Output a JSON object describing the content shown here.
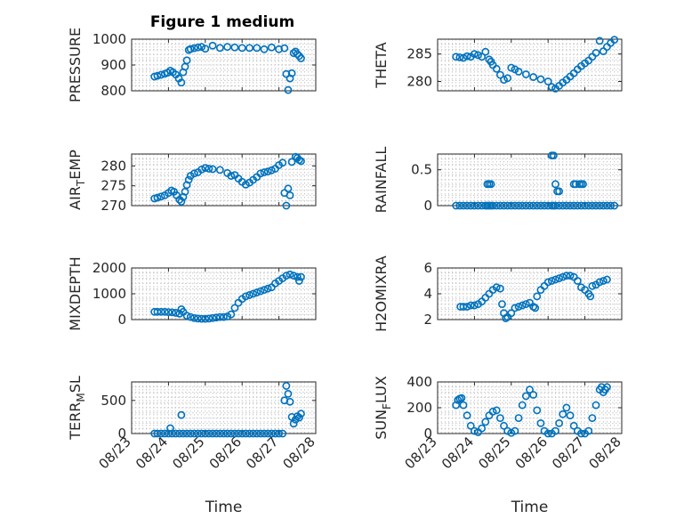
{
  "figure": {
    "title": "Figure 1 medium",
    "marker_color": "#0072BD"
  },
  "chart_data": [
    {
      "type": "scatter",
      "ylabel": "PRESSURE",
      "ylim": [
        800,
        1000
      ],
      "yticks": [
        800,
        900,
        1000
      ],
      "xlim": [
        0,
        5
      ],
      "xtick_labels": [
        "08/23",
        "08/24",
        "08/25",
        "08/26",
        "08/27",
        "08/28"
      ],
      "xlabel": "",
      "grid": true,
      "x": [
        0.62,
        0.7,
        0.8,
        0.9,
        0.98,
        1.05,
        1.12,
        1.2,
        1.28,
        1.35,
        1.4,
        1.45,
        1.5,
        1.55,
        1.6,
        1.7,
        1.8,
        1.9,
        2.0,
        2.2,
        2.4,
        2.6,
        2.8,
        3.0,
        3.2,
        3.4,
        3.6,
        3.8,
        4.0,
        4.15,
        4.2,
        4.25,
        4.3,
        4.35,
        4.4,
        4.45,
        4.5,
        4.55,
        4.6
      ],
      "y": [
        855,
        858,
        862,
        866,
        870,
        878,
        872,
        863,
        848,
        832,
        872,
        893,
        918,
        958,
        962,
        965,
        968,
        970,
        963,
        975,
        966,
        970,
        968,
        966,
        966,
        966,
        961,
        968,
        961,
        965,
        865,
        803,
        848,
        868,
        946,
        952,
        942,
        935,
        926
      ]
    },
    {
      "type": "scatter",
      "ylabel": "THETA",
      "ylim": [
        278.3,
        287.7
      ],
      "yticks": [
        280,
        285
      ],
      "xlim": [
        0,
        5
      ],
      "xtick_labels": [
        "08/23",
        "08/24",
        "08/25",
        "08/26",
        "08/27",
        "08/28"
      ],
      "xlabel": "",
      "grid": true,
      "x": [
        0.5,
        0.6,
        0.7,
        0.8,
        0.9,
        1.0,
        1.1,
        1.2,
        1.3,
        1.4,
        1.45,
        1.5,
        1.6,
        1.7,
        1.8,
        1.9,
        2.0,
        2.1,
        2.2,
        2.4,
        2.6,
        2.8,
        3.0,
        3.1,
        3.2,
        3.3,
        3.4,
        3.5,
        3.6,
        3.7,
        3.8,
        3.9,
        4.0,
        4.1,
        4.2,
        4.3,
        4.4,
        4.5,
        4.6,
        4.7,
        4.8
      ],
      "y": [
        284.5,
        284.4,
        284.3,
        284.6,
        284.5,
        285.0,
        284.8,
        284.5,
        285.4,
        284.0,
        283.6,
        283.0,
        282.3,
        281.2,
        280.3,
        280.6,
        282.5,
        282.2,
        281.8,
        281.3,
        280.8,
        280.4,
        280.0,
        279.0,
        278.7,
        279.2,
        279.8,
        280.3,
        280.9,
        281.5,
        282.2,
        282.8,
        283.3,
        283.8,
        284.5,
        285.2,
        287.4,
        285.5,
        286.3,
        287.0,
        287.6
      ]
    },
    {
      "type": "scatter",
      "ylabel_main": "AIR",
      "ylabel_sub": "T",
      "ylabel_rest": "EMP",
      "ylim": [
        270,
        283
      ],
      "yticks": [
        270,
        275,
        280
      ],
      "xlim": [
        0,
        5
      ],
      "xtick_labels": [
        "08/23",
        "08/24",
        "08/25",
        "08/26",
        "08/27",
        "08/28"
      ],
      "xlabel": "",
      "grid": true,
      "x": [
        0.62,
        0.7,
        0.8,
        0.9,
        1.0,
        1.08,
        1.15,
        1.22,
        1.3,
        1.35,
        1.4,
        1.45,
        1.5,
        1.55,
        1.6,
        1.7,
        1.8,
        1.9,
        2.0,
        2.1,
        2.2,
        2.4,
        2.6,
        2.7,
        2.8,
        2.9,
        3.0,
        3.1,
        3.2,
        3.3,
        3.4,
        3.5,
        3.6,
        3.7,
        3.8,
        3.9,
        4.0,
        4.1,
        4.15,
        4.2,
        4.25,
        4.3,
        4.35,
        4.45,
        4.5,
        4.55,
        4.6
      ],
      "y": [
        271.8,
        272.0,
        272.3,
        272.6,
        273.2,
        273.8,
        273.5,
        272.6,
        271.5,
        271.0,
        272.2,
        273.5,
        275.2,
        276.5,
        277.5,
        278.1,
        278.4,
        279.1,
        279.5,
        279.3,
        279.2,
        279.0,
        278.2,
        277.5,
        277.7,
        276.8,
        276.0,
        275.3,
        275.8,
        276.5,
        277.2,
        278.1,
        278.4,
        278.6,
        278.9,
        279.3,
        280.2,
        280.8,
        273.2,
        270.0,
        274.3,
        272.6,
        281.0,
        282.3,
        282.0,
        281.5,
        281.2
      ]
    },
    {
      "type": "scatter",
      "ylabel": "RAINFALL",
      "ylim": [
        0,
        0.72
      ],
      "yticks": [
        0,
        0.5
      ],
      "xlim": [
        0,
        5
      ],
      "xtick_labels": [
        "08/23",
        "08/24",
        "08/25",
        "08/26",
        "08/27",
        "08/28"
      ],
      "xlabel": "",
      "grid": true,
      "x": [
        0.5,
        0.6,
        0.7,
        0.8,
        0.9,
        1.0,
        1.1,
        1.2,
        1.3,
        1.35,
        1.4,
        1.45,
        1.5,
        1.6,
        1.7,
        1.8,
        1.9,
        2.0,
        2.1,
        2.2,
        2.3,
        2.4,
        2.5,
        2.6,
        2.7,
        2.8,
        2.9,
        3.0,
        3.1,
        3.15,
        3.2,
        3.3,
        3.4,
        3.5,
        3.6,
        3.7,
        3.8,
        3.9,
        4.0,
        4.1,
        4.2,
        4.3,
        4.4,
        4.5,
        4.6,
        4.7,
        4.8,
        1.35,
        1.4,
        1.45,
        3.1,
        3.15,
        3.2,
        3.25,
        3.3,
        3.7,
        3.75,
        3.85,
        3.9,
        3.95
      ],
      "y": [
        0,
        0,
        0,
        0,
        0,
        0,
        0,
        0,
        0,
        0,
        0,
        0,
        0,
        0,
        0,
        0,
        0,
        0,
        0,
        0,
        0,
        0,
        0,
        0,
        0,
        0,
        0,
        0,
        0,
        0,
        0,
        0,
        0,
        0,
        0,
        0,
        0,
        0,
        0,
        0,
        0,
        0,
        0,
        0,
        0,
        0,
        0,
        0.3,
        0.3,
        0.3,
        0.7,
        0.7,
        0.3,
        0.2,
        0.2,
        0.3,
        0.3,
        0.3,
        0.3,
        0.3
      ]
    },
    {
      "type": "scatter",
      "ylabel": "MIXDEPTH",
      "ylim": [
        0,
        2000
      ],
      "yticks": [
        0,
        1000,
        2000
      ],
      "xlim": [
        0,
        5
      ],
      "xtick_labels": [
        "08/23",
        "08/24",
        "08/25",
        "08/26",
        "08/27",
        "08/28"
      ],
      "xlabel": "",
      "grid": true,
      "x": [
        0.62,
        0.7,
        0.8,
        0.9,
        1.0,
        1.1,
        1.2,
        1.3,
        1.35,
        1.4,
        1.5,
        1.6,
        1.7,
        1.8,
        1.9,
        2.0,
        2.1,
        2.2,
        2.3,
        2.4,
        2.5,
        2.6,
        2.7,
        2.8,
        2.9,
        3.0,
        3.1,
        3.2,
        3.3,
        3.4,
        3.5,
        3.6,
        3.7,
        3.8,
        3.9,
        4.0,
        4.1,
        4.2,
        4.3,
        4.4,
        4.5,
        4.55,
        4.6
      ],
      "y": [
        300,
        300,
        300,
        300,
        290,
        280,
        260,
        230,
        400,
        300,
        150,
        100,
        60,
        40,
        30,
        30,
        40,
        60,
        80,
        100,
        100,
        120,
        200,
        450,
        650,
        800,
        900,
        950,
        1000,
        1050,
        1100,
        1150,
        1200,
        1250,
        1400,
        1500,
        1600,
        1700,
        1750,
        1700,
        1650,
        1500,
        1650
      ]
    },
    {
      "type": "scatter",
      "ylabel": "H2OMIXRA",
      "ylim": [
        2,
        6
      ],
      "yticks": [
        2,
        4,
        6
      ],
      "xlim": [
        0,
        5
      ],
      "xtick_labels": [
        "08/23",
        "08/24",
        "08/25",
        "08/26",
        "08/27",
        "08/28"
      ],
      "xlabel": "",
      "grid": true,
      "x": [
        0.62,
        0.7,
        0.8,
        0.9,
        1.0,
        1.1,
        1.2,
        1.3,
        1.4,
        1.5,
        1.6,
        1.7,
        1.75,
        1.8,
        1.85,
        1.9,
        2.0,
        2.1,
        2.2,
        2.3,
        2.4,
        2.5,
        2.6,
        2.65,
        2.7,
        2.8,
        2.9,
        3.0,
        3.1,
        3.2,
        3.3,
        3.4,
        3.5,
        3.6,
        3.7,
        3.8,
        3.9,
        4.0,
        4.1,
        4.15,
        4.2,
        4.3,
        4.4,
        4.5,
        4.6
      ],
      "y": [
        3.0,
        3.0,
        3.0,
        3.1,
        3.1,
        3.2,
        3.4,
        3.7,
        4.0,
        4.3,
        4.5,
        4.4,
        3.2,
        2.5,
        2.1,
        2.2,
        2.5,
        2.9,
        3.0,
        3.1,
        3.2,
        3.3,
        3.0,
        2.9,
        3.8,
        4.3,
        4.6,
        4.9,
        5.0,
        5.1,
        5.2,
        5.3,
        5.4,
        5.4,
        5.3,
        5.0,
        4.5,
        4.3,
        4.0,
        3.8,
        4.6,
        4.7,
        4.9,
        5.0,
        5.1
      ]
    },
    {
      "type": "scatter",
      "ylabel_main": "TERR",
      "ylabel_sub": "M",
      "ylabel_rest": "SL",
      "ylim": [
        0,
        780
      ],
      "yticks": [
        0,
        500
      ],
      "xlim": [
        0,
        5
      ],
      "xtick_labels": [
        "08/23",
        "08/24",
        "08/25",
        "08/26",
        "08/27",
        "08/28"
      ],
      "xlabel": "Time",
      "grid": true,
      "x": [
        0.62,
        0.7,
        0.8,
        0.9,
        1.0,
        1.05,
        1.1,
        1.2,
        1.3,
        1.35,
        1.4,
        1.5,
        1.6,
        1.7,
        1.8,
        1.9,
        2.0,
        2.1,
        2.2,
        2.3,
        2.4,
        2.5,
        2.6,
        2.7,
        2.8,
        2.9,
        3.0,
        3.1,
        3.2,
        3.3,
        3.4,
        3.5,
        3.6,
        3.7,
        3.8,
        3.9,
        4.0,
        4.1,
        4.15,
        4.2,
        4.25,
        4.3,
        4.35,
        4.4,
        4.45,
        4.5,
        4.55,
        4.6
      ],
      "y": [
        0,
        0,
        0,
        0,
        0,
        80,
        0,
        0,
        0,
        280,
        0,
        0,
        0,
        0,
        0,
        0,
        0,
        0,
        0,
        0,
        0,
        0,
        0,
        0,
        0,
        0,
        0,
        0,
        0,
        0,
        0,
        0,
        0,
        0,
        0,
        0,
        0,
        0,
        500,
        720,
        600,
        480,
        250,
        150,
        210,
        260,
        240,
        300
      ]
    },
    {
      "type": "scatter",
      "ylabel_main": "SUN",
      "ylabel_sub": "F",
      "ylabel_rest": "LUX",
      "ylim": [
        0,
        400
      ],
      "yticks": [
        0,
        200,
        400
      ],
      "xlim": [
        0,
        5
      ],
      "xtick_labels": [
        "08/23",
        "08/24",
        "08/25",
        "08/26",
        "08/27",
        "08/28"
      ],
      "xlabel": "Time",
      "grid": true,
      "x": [
        0.5,
        0.55,
        0.6,
        0.65,
        0.7,
        0.8,
        0.9,
        1.0,
        1.1,
        1.2,
        1.3,
        1.4,
        1.5,
        1.6,
        1.7,
        1.8,
        1.9,
        2.0,
        2.1,
        2.2,
        2.3,
        2.4,
        2.5,
        2.6,
        2.7,
        2.8,
        2.9,
        3.0,
        3.1,
        3.2,
        3.3,
        3.4,
        3.5,
        3.6,
        3.7,
        3.8,
        3.9,
        4.0,
        4.1,
        4.2,
        4.3,
        4.4,
        4.45,
        4.5,
        4.55,
        4.6
      ],
      "y": [
        220,
        260,
        270,
        275,
        220,
        140,
        60,
        20,
        10,
        40,
        90,
        140,
        170,
        180,
        120,
        60,
        20,
        5,
        20,
        120,
        220,
        290,
        340,
        300,
        180,
        80,
        20,
        0,
        0,
        20,
        80,
        150,
        200,
        140,
        60,
        20,
        0,
        0,
        20,
        120,
        220,
        340,
        360,
        320,
        340,
        360
      ]
    }
  ]
}
